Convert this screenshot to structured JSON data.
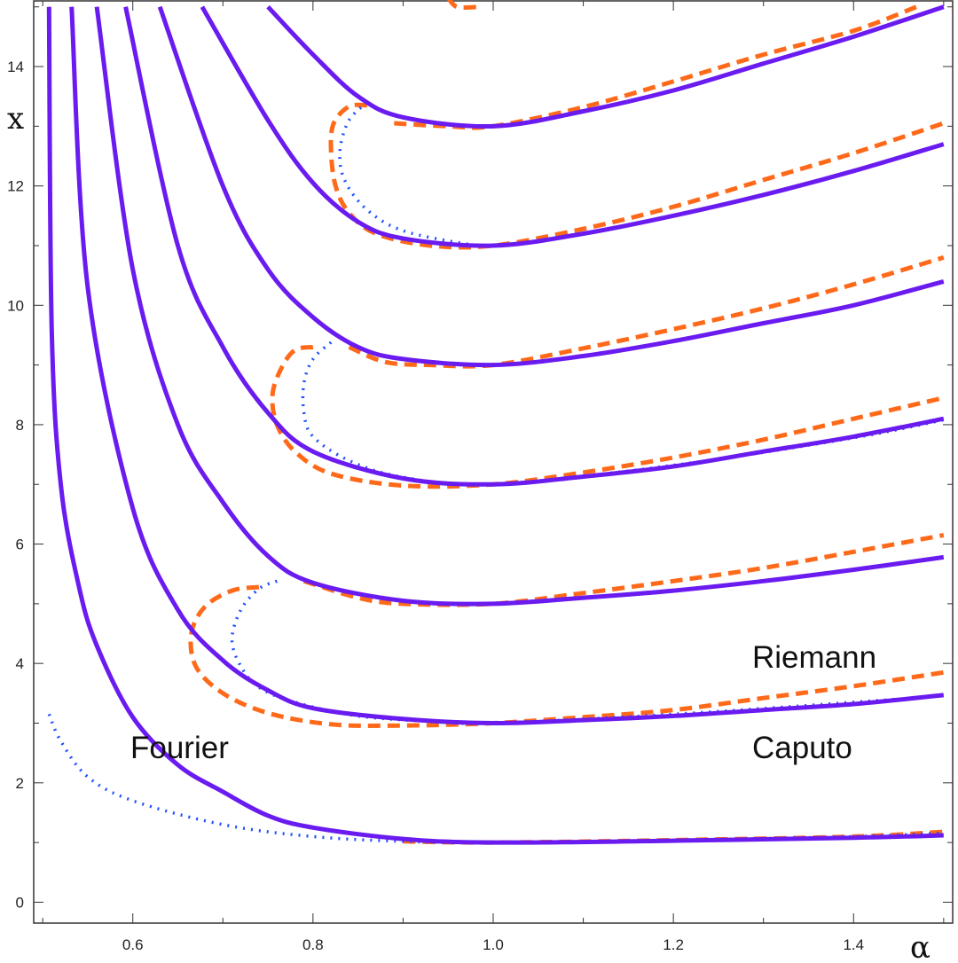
{
  "chart_data": {
    "type": "line",
    "title": "",
    "xlabel": "α",
    "ylabel": "x",
    "xlim": [
      0.49,
      1.51
    ],
    "ylim": [
      -0.35,
      15.1
    ],
    "x_ticks": [
      "0.6",
      "0.8",
      "1.0",
      "1.2",
      "1.4"
    ],
    "y_ticks": [
      "0",
      "2",
      "4",
      "6",
      "8",
      "10",
      "12",
      "14"
    ],
    "annotations": [
      "Fourier",
      "Riemann",
      "Caputo"
    ],
    "colors": {
      "fourier": "#6a1bf0",
      "riemann": "#ff6a1a",
      "caputo": "#2050ff",
      "frame": "#333333"
    },
    "series": [
      {
        "style": "solid",
        "values": [
          [
            0.507,
            15.0
          ],
          [
            0.51,
            9.6
          ],
          [
            0.52,
            7.0
          ],
          [
            0.54,
            5.3
          ],
          [
            0.56,
            4.3
          ],
          [
            0.6,
            3.1
          ],
          [
            0.65,
            2.3
          ],
          [
            0.7,
            1.85
          ],
          [
            0.75,
            1.45
          ],
          [
            0.8,
            1.25
          ],
          [
            0.9,
            1.06
          ],
          [
            1.0,
            1.0
          ],
          [
            1.2,
            1.03
          ],
          [
            1.4,
            1.08
          ],
          [
            1.5,
            1.12
          ]
        ]
      },
      {
        "style": "solid",
        "values": [
          [
            0.532,
            15.0
          ],
          [
            0.55,
            10.3
          ],
          [
            0.6,
            6.6
          ],
          [
            0.65,
            4.9
          ],
          [
            0.7,
            4.05
          ],
          [
            0.75,
            3.55
          ],
          [
            0.8,
            3.25
          ],
          [
            0.9,
            3.07
          ],
          [
            1.0,
            3.0
          ],
          [
            1.1,
            3.05
          ],
          [
            1.2,
            3.12
          ],
          [
            1.3,
            3.22
          ],
          [
            1.4,
            3.32
          ],
          [
            1.5,
            3.47
          ]
        ]
      },
      {
        "style": "solid",
        "values": [
          [
            0.56,
            15.0
          ],
          [
            0.6,
            10.6
          ],
          [
            0.65,
            8.0
          ],
          [
            0.7,
            6.7
          ],
          [
            0.75,
            5.8
          ],
          [
            0.8,
            5.35
          ],
          [
            0.9,
            5.05
          ],
          [
            1.0,
            5.0
          ],
          [
            1.1,
            5.1
          ],
          [
            1.2,
            5.22
          ],
          [
            1.3,
            5.38
          ],
          [
            1.4,
            5.57
          ],
          [
            1.5,
            5.78
          ]
        ]
      },
      {
        "style": "solid",
        "values": [
          [
            0.592,
            15.0
          ],
          [
            0.65,
            11.0
          ],
          [
            0.7,
            9.3
          ],
          [
            0.75,
            8.2
          ],
          [
            0.8,
            7.55
          ],
          [
            0.9,
            7.1
          ],
          [
            1.0,
            7.0
          ],
          [
            1.1,
            7.13
          ],
          [
            1.2,
            7.3
          ],
          [
            1.3,
            7.55
          ],
          [
            1.4,
            7.8
          ],
          [
            1.5,
            8.1
          ]
        ]
      },
      {
        "style": "solid",
        "values": [
          [
            0.63,
            15.0
          ],
          [
            0.7,
            12.0
          ],
          [
            0.75,
            10.6
          ],
          [
            0.8,
            9.8
          ],
          [
            0.85,
            9.3
          ],
          [
            0.9,
            9.1
          ],
          [
            1.0,
            9.0
          ],
          [
            1.1,
            9.15
          ],
          [
            1.2,
            9.4
          ],
          [
            1.3,
            9.7
          ],
          [
            1.4,
            10.0
          ],
          [
            1.5,
            10.4
          ]
        ]
      },
      {
        "style": "solid",
        "values": [
          [
            0.677,
            15.0
          ],
          [
            0.75,
            13.1
          ],
          [
            0.8,
            12.05
          ],
          [
            0.85,
            11.4
          ],
          [
            0.9,
            11.12
          ],
          [
            1.0,
            11.0
          ],
          [
            1.1,
            11.2
          ],
          [
            1.2,
            11.5
          ],
          [
            1.3,
            11.85
          ],
          [
            1.4,
            12.25
          ],
          [
            1.5,
            12.7
          ]
        ]
      },
      {
        "style": "solid",
        "values": [
          [
            0.75,
            15.0
          ],
          [
            0.8,
            14.2
          ],
          [
            0.85,
            13.5
          ],
          [
            0.9,
            13.15
          ],
          [
            1.0,
            13.0
          ],
          [
            1.1,
            13.25
          ],
          [
            1.2,
            13.6
          ],
          [
            1.3,
            14.05
          ],
          [
            1.4,
            14.5
          ],
          [
            1.5,
            15.0
          ]
        ]
      },
      {
        "style": "dotted",
        "values": [
          [
            0.507,
            3.15
          ],
          [
            0.52,
            2.7
          ],
          [
            0.55,
            2.1
          ],
          [
            0.6,
            1.7
          ],
          [
            0.7,
            1.3
          ],
          [
            0.8,
            1.1
          ],
          [
            0.9,
            1.02
          ],
          [
            1.0,
            1.0
          ],
          [
            1.2,
            1.04
          ],
          [
            1.4,
            1.1
          ],
          [
            1.5,
            1.16
          ]
        ]
      },
      {
        "style": "dotted",
        "values": [
          [
            0.76,
            5.38
          ],
          [
            0.74,
            5.25
          ],
          [
            0.72,
            4.9
          ],
          [
            0.71,
            4.4
          ],
          [
            0.72,
            3.95
          ],
          [
            0.74,
            3.6
          ],
          [
            0.78,
            3.35
          ],
          [
            0.85,
            3.12
          ],
          [
            0.93,
            3.03
          ],
          [
            1.0,
            3.0
          ],
          [
            1.2,
            3.15
          ],
          [
            1.4,
            3.35
          ],
          [
            1.5,
            3.46
          ]
        ]
      },
      {
        "style": "dotted",
        "values": [
          [
            0.82,
            9.38
          ],
          [
            0.8,
            9.1
          ],
          [
            0.79,
            8.7
          ],
          [
            0.79,
            8.2
          ],
          [
            0.8,
            7.8
          ],
          [
            0.84,
            7.4
          ],
          [
            0.9,
            7.12
          ],
          [
            1.0,
            7.0
          ],
          [
            1.2,
            7.32
          ],
          [
            1.4,
            7.78
          ],
          [
            1.5,
            8.08
          ]
        ]
      },
      {
        "style": "dotted",
        "values": [
          [
            0.86,
            13.4
          ],
          [
            0.84,
            13.1
          ],
          [
            0.83,
            12.6
          ],
          [
            0.835,
            12.1
          ],
          [
            0.86,
            11.6
          ],
          [
            0.9,
            11.25
          ],
          [
            0.97,
            11.03
          ],
          [
            1.0,
            11.0
          ]
        ]
      },
      {
        "style": "dashed",
        "values": [
          [
            0.9,
            1.02
          ],
          [
            1.0,
            1.0
          ],
          [
            1.2,
            1.04
          ],
          [
            1.4,
            1.1
          ],
          [
            1.5,
            1.18
          ]
        ]
      },
      {
        "style": "dashed",
        "values": [
          [
            0.74,
            5.28
          ],
          [
            0.71,
            5.22
          ],
          [
            0.68,
            4.95
          ],
          [
            0.665,
            4.5
          ],
          [
            0.67,
            3.95
          ],
          [
            0.7,
            3.5
          ],
          [
            0.75,
            3.17
          ],
          [
            0.82,
            2.98
          ],
          [
            0.9,
            2.96
          ],
          [
            1.0,
            3.0
          ],
          [
            1.1,
            3.1
          ],
          [
            1.2,
            3.22
          ],
          [
            1.3,
            3.42
          ],
          [
            1.4,
            3.62
          ],
          [
            1.5,
            3.85
          ]
        ]
      },
      {
        "style": "dashed",
        "values": [
          [
            0.79,
            5.38
          ],
          [
            0.85,
            5.1
          ],
          [
            0.9,
            5.0
          ],
          [
            1.0,
            5.0
          ],
          [
            1.1,
            5.18
          ],
          [
            1.2,
            5.38
          ],
          [
            1.3,
            5.6
          ],
          [
            1.4,
            5.87
          ],
          [
            1.5,
            6.15
          ]
        ]
      },
      {
        "style": "dashed",
        "values": [
          [
            0.8,
            9.3
          ],
          [
            0.78,
            9.25
          ],
          [
            0.765,
            8.95
          ],
          [
            0.755,
            8.5
          ],
          [
            0.76,
            8.0
          ],
          [
            0.78,
            7.55
          ],
          [
            0.82,
            7.18
          ],
          [
            0.9,
            6.98
          ],
          [
            1.0,
            7.0
          ],
          [
            1.1,
            7.2
          ],
          [
            1.2,
            7.45
          ],
          [
            1.3,
            7.75
          ],
          [
            1.4,
            8.1
          ],
          [
            1.5,
            8.45
          ]
        ]
      },
      {
        "style": "dashed",
        "values": [
          [
            0.84,
            9.3
          ],
          [
            0.88,
            9.05
          ],
          [
            0.93,
            9.0
          ],
          [
            1.0,
            9.0
          ],
          [
            1.1,
            9.28
          ],
          [
            1.2,
            9.6
          ],
          [
            1.3,
            9.95
          ],
          [
            1.4,
            10.35
          ],
          [
            1.5,
            10.8
          ]
        ]
      },
      {
        "style": "dashed",
        "values": [
          [
            0.86,
            13.35
          ],
          [
            0.84,
            13.33
          ],
          [
            0.823,
            13.05
          ],
          [
            0.82,
            12.6
          ],
          [
            0.825,
            12.0
          ],
          [
            0.84,
            11.55
          ],
          [
            0.87,
            11.2
          ],
          [
            0.93,
            11.0
          ],
          [
            1.0,
            11.0
          ],
          [
            1.1,
            11.28
          ],
          [
            1.2,
            11.65
          ],
          [
            1.3,
            12.1
          ],
          [
            1.4,
            12.55
          ],
          [
            1.5,
            13.05
          ]
        ]
      },
      {
        "style": "dashed",
        "values": [
          [
            0.89,
            13.05
          ],
          [
            0.95,
            13.0
          ],
          [
            1.0,
            13.0
          ],
          [
            1.1,
            13.32
          ],
          [
            1.2,
            13.75
          ],
          [
            1.3,
            14.2
          ],
          [
            1.4,
            14.6
          ],
          [
            1.47,
            15.0
          ]
        ]
      },
      {
        "style": "dashed",
        "values": [
          [
            0.95,
            15.15
          ],
          [
            0.96,
            15.0
          ],
          [
            0.985,
            15.0
          ]
        ]
      }
    ]
  }
}
